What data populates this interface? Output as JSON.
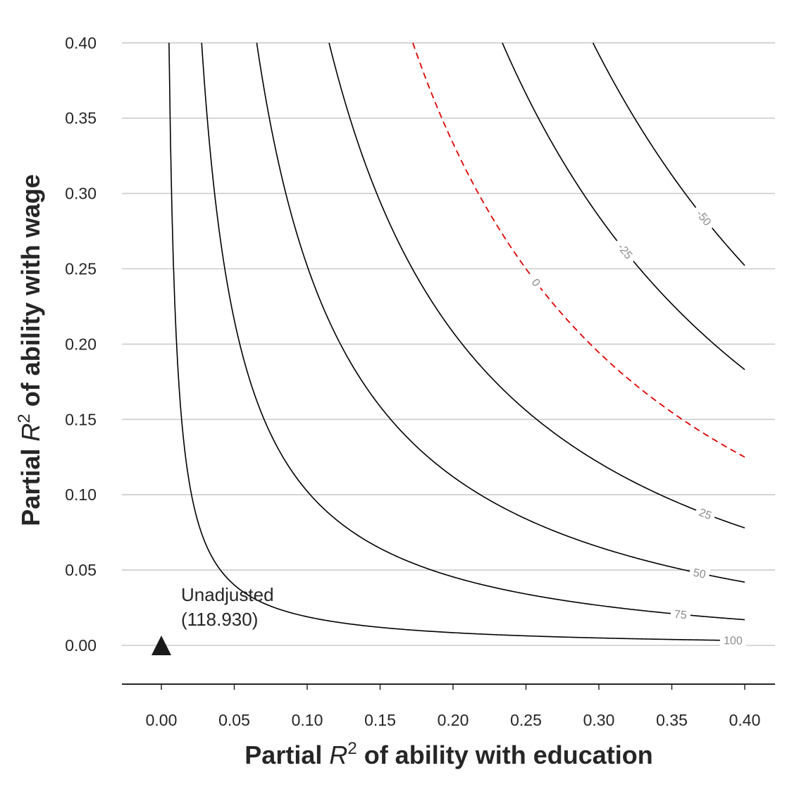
{
  "chart_data": {
    "type": "contour",
    "x": {
      "label_prefix": "Partial ",
      "label_var": "R",
      "label_sup": "2",
      "label_suffix": " of ability with education",
      "lim": [
        -0.027,
        0.42
      ],
      "ticks": [
        "0.00",
        "0.05",
        "0.10",
        "0.15",
        "0.20",
        "0.25",
        "0.30",
        "0.35",
        "0.40"
      ]
    },
    "y": {
      "label_prefix": "Partial ",
      "label_var": "R",
      "label_sup": "2",
      "label_suffix": " of ability with wage",
      "lim": [
        -0.026,
        0.4
      ],
      "ticks": [
        "0.00",
        "0.05",
        "0.10",
        "0.15",
        "0.20",
        "0.25",
        "0.30",
        "0.35",
        "0.40"
      ]
    },
    "grid": "horizontal",
    "estimate": 118.93,
    "contours": [
      {
        "label": "100",
        "level": 100,
        "style": "solid",
        "color": "#000000"
      },
      {
        "label": "75",
        "level": 75,
        "style": "solid",
        "color": "#000000"
      },
      {
        "label": "50",
        "level": 50,
        "style": "solid",
        "color": "#000000"
      },
      {
        "label": "25",
        "level": 25,
        "style": "solid",
        "color": "#000000"
      },
      {
        "label": "0",
        "level": 0,
        "style": "dashed",
        "color": "#e00000"
      },
      {
        "label": "-25",
        "level": -25,
        "style": "solid",
        "color": "#000000"
      },
      {
        "label": "-50",
        "level": -50,
        "style": "solid",
        "color": "#000000"
      }
    ],
    "point": {
      "x": 0.0,
      "y": 0.0,
      "marker": "triangle",
      "label_line1": "Unadjusted",
      "label_line2": "(118.930)"
    }
  }
}
